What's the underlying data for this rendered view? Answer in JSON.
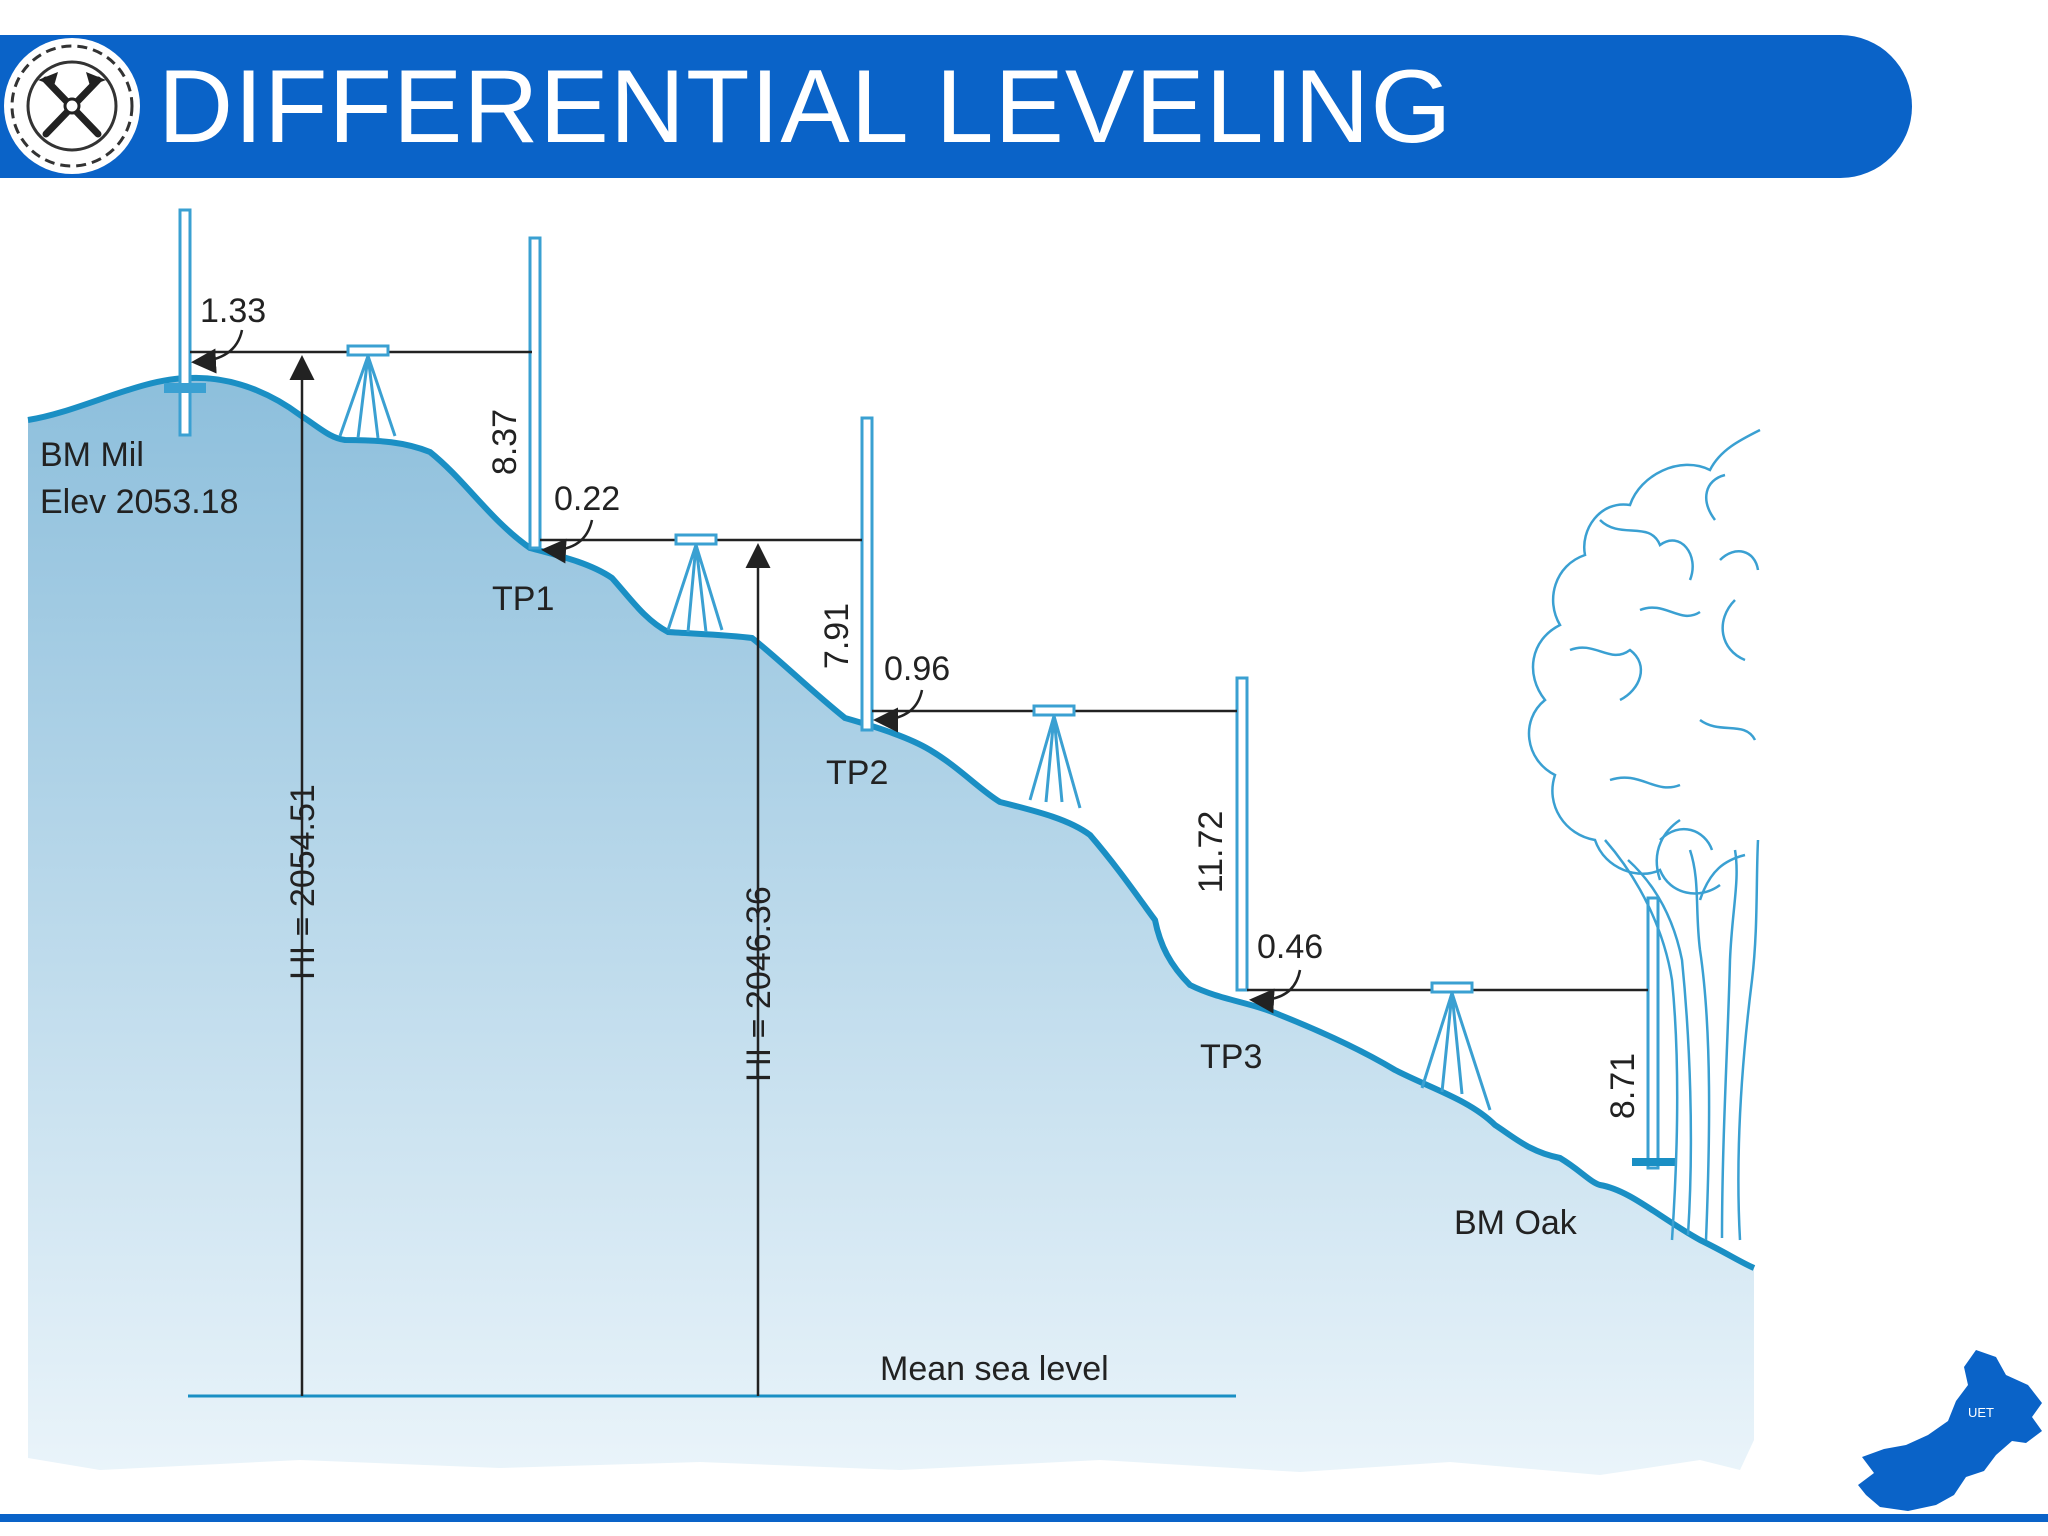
{
  "header": {
    "title": "DIFFERENTIAL LEVELING"
  },
  "colors": {
    "header_blue": "#0a63c8",
    "ground_line": "#1a8fc4",
    "rod": "#3aa0d2",
    "ink": "#222222",
    "ground_fill_top": "#8dbfdc",
    "ground_fill_bottom": "#eaf4fa"
  },
  "diagram": {
    "benchmarks": [
      {
        "name": "BM Mil",
        "elevation_label": "Elev 2053.18"
      },
      {
        "name": "BM Oak"
      }
    ],
    "turning_points": [
      "TP1",
      "TP2",
      "TP3"
    ],
    "readings": {
      "backsights": [
        "1.33",
        "0.22",
        "0.96",
        "0.46"
      ],
      "foresights": [
        "8.37",
        "7.91",
        "11.72",
        "8.71"
      ]
    },
    "instrument_heights": [
      "HI = 2054.51",
      "HI = 2046.36"
    ],
    "datum_label": "Mean sea level"
  },
  "footer": {
    "map_logo_text": "UET"
  },
  "icons": [
    "university-seal-icon",
    "tripod-icon",
    "leveling-rod-icon",
    "tree-icon",
    "pakistan-map-icon"
  ]
}
